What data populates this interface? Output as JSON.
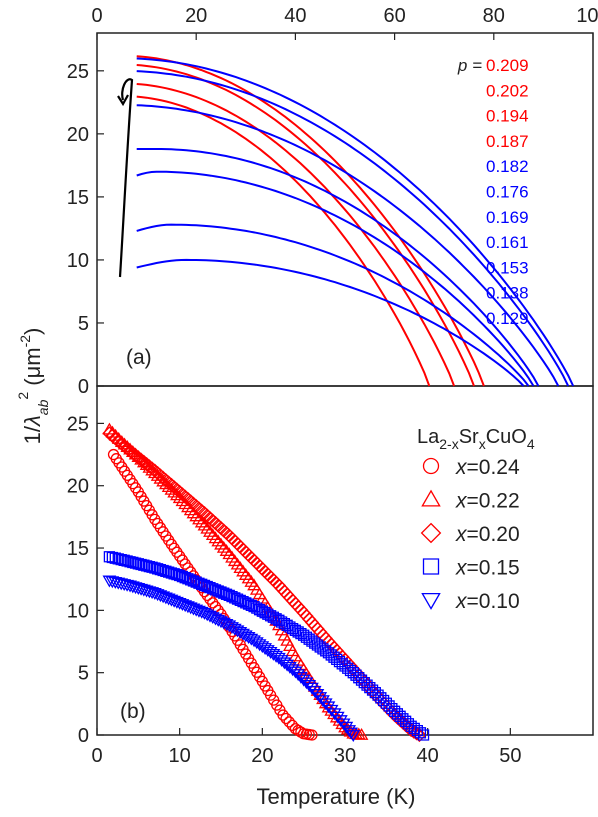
{
  "chart_data": [
    {
      "panel_label": "(a)",
      "type": "line",
      "xlabel_top": "",
      "xlim_top": [
        0,
        100
      ],
      "xticks_top": [
        "0",
        "20",
        "40",
        "60",
        "80",
        "100"
      ],
      "ylim": [
        0,
        28
      ],
      "yticks": [
        "0",
        "5",
        "10",
        "15",
        "20",
        "25"
      ],
      "legend_prefix": "p =",
      "series": [
        {
          "name": "0.209",
          "color": "#ff0000",
          "y0": 26.2,
          "ymax": 26.2,
          "tmax": 5,
          "tc": 78
        },
        {
          "name": "0.202",
          "color": "#ff0000",
          "y0": 25.5,
          "ymax": 25.5,
          "tmax": 5,
          "tc": 76
        },
        {
          "name": "0.194",
          "color": "#ff0000",
          "y0": 24.0,
          "ymax": 24.0,
          "tmax": 5,
          "tc": 72
        },
        {
          "name": "0.187",
          "color": "#ff0000",
          "y0": 23.0,
          "ymax": 23.0,
          "tmax": 5,
          "tc": 67
        },
        {
          "name": "0.182",
          "color": "#0000ff",
          "y0": 26.0,
          "ymax": 26.0,
          "tmax": 5,
          "tc": 96
        },
        {
          "name": "0.176",
          "color": "#0000ff",
          "y0": 25.0,
          "ymax": 25.0,
          "tmax": 5,
          "tc": 95
        },
        {
          "name": "0.169",
          "color": "#0000ff",
          "y0": 22.3,
          "ymax": 22.3,
          "tmax": 5,
          "tc": 93
        },
        {
          "name": "0.161",
          "color": "#0000ff",
          "y0": 18.8,
          "ymax": 18.8,
          "tmax": 12,
          "tc": 89
        },
        {
          "name": "0.153",
          "color": "#0000ff",
          "y0": 16.7,
          "ymax": 17.0,
          "tmax": 12,
          "tc": 88
        },
        {
          "name": "0.138",
          "color": "#0000ff",
          "y0": 12.3,
          "ymax": 12.8,
          "tmax": 15,
          "tc": 87
        },
        {
          "name": "0.129",
          "color": "#0000ff",
          "y0": 9.4,
          "ymax": 10.0,
          "tmax": 18,
          "tc": 86
        }
      ]
    },
    {
      "panel_label": "(b)",
      "type": "scatter",
      "xlabel": "Temperature (K)",
      "ylabel": "1/λab² (μm⁻²)",
      "xlim": [
        0,
        60
      ],
      "xticks": [
        "0",
        "10",
        "20",
        "30",
        "40",
        "50"
      ],
      "ylim": [
        0,
        28
      ],
      "yticks": [
        "0",
        "5",
        "10",
        "15",
        "20",
        "25"
      ],
      "legend_title": "La2-xSrxCuO4",
      "series": [
        {
          "name": "x=0.24",
          "marker": "circle",
          "color": "#ff0000",
          "x": [
            2,
            3,
            5,
            7,
            9,
            11,
            13,
            15,
            17,
            19,
            21,
            22.5,
            24,
            25,
            26
          ],
          "y": [
            22.5,
            21.5,
            19.5,
            17.3,
            15.3,
            13.4,
            11.5,
            9.7,
            7.6,
            5.4,
            3.2,
            1.6,
            0.5,
            0.1,
            0
          ]
        },
        {
          "name": "x=0.22",
          "marker": "triangle-up",
          "color": "#ff0000",
          "x": [
            1.5,
            3,
            5,
            7,
            10,
            13,
            16,
            19,
            22,
            24,
            26,
            28,
            30,
            31,
            32
          ],
          "y": [
            24.5,
            23.5,
            22.3,
            21.0,
            19.0,
            16.8,
            14.5,
            12.0,
            8.8,
            6.3,
            4.2,
            2.2,
            0.6,
            0.1,
            0
          ]
        },
        {
          "name": "x=0.20",
          "marker": "diamond",
          "color": "#ff0000",
          "x": [
            1.5,
            4,
            7,
            10,
            13,
            16,
            19,
            22,
            25,
            28,
            31,
            34,
            36,
            38,
            39
          ],
          "y": [
            24.2,
            22.8,
            21.2,
            19.5,
            17.8,
            16.0,
            14.0,
            12.0,
            9.8,
            7.5,
            5.3,
            3.0,
            1.6,
            0.4,
            0
          ]
        },
        {
          "name": "x=0.15",
          "marker": "square",
          "color": "#0000ff",
          "x": [
            1.5,
            4,
            7,
            10,
            13,
            16,
            19,
            22,
            25,
            28,
            31,
            34,
            36,
            38,
            39.5
          ],
          "y": [
            14.3,
            13.9,
            13.4,
            12.8,
            12.0,
            11.2,
            10.3,
            9.2,
            8.0,
            6.6,
            5.0,
            3.2,
            1.9,
            0.7,
            0
          ]
        },
        {
          "name": "x=0.10",
          "marker": "triangle-down",
          "color": "#0000ff",
          "x": [
            1.5,
            4,
            7,
            10,
            13,
            16,
            19,
            22,
            24,
            26,
            28,
            29.5,
            30.5,
            31
          ],
          "y": [
            12.4,
            12.0,
            11.4,
            10.6,
            9.8,
            8.8,
            7.6,
            6.2,
            5.1,
            3.8,
            2.3,
            1.2,
            0.4,
            0
          ]
        }
      ]
    }
  ]
}
